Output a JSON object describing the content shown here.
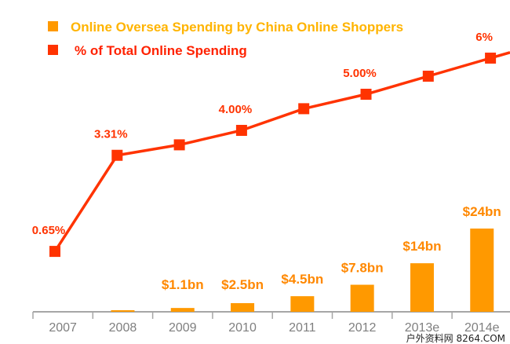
{
  "chart_data": {
    "type": "bar+line",
    "categories": [
      "2007",
      "2008",
      "2009",
      "2010",
      "2011",
      "2012",
      "2013e",
      "2014e"
    ],
    "series": [
      {
        "name": "Online Oversea Spending by China Online Shoppers",
        "type": "bar",
        "unit": "$bn",
        "color": "#ff9900",
        "values": [
          0,
          0.4,
          1.1,
          2.5,
          4.5,
          7.8,
          14,
          24
        ],
        "labels": [
          "",
          "",
          "$1.1bn",
          "$2.5bn",
          "$4.5bn",
          "$7.8bn",
          "$14bn",
          "$24bn"
        ]
      },
      {
        "name": "% of Total Online Spending",
        "type": "line",
        "unit": "%",
        "color": "#ff3300",
        "values": [
          0.65,
          3.31,
          3.6,
          4.0,
          4.6,
          5.0,
          5.5,
          6.0
        ],
        "labels": [
          "0.65%",
          "3.31%",
          "",
          "4.00%",
          "",
          "5.00%",
          "",
          "6%"
        ]
      }
    ],
    "bar_ylim": [
      0,
      24
    ],
    "line_ylim": [
      0,
      6
    ],
    "legend_position": "top-left",
    "grid": false
  },
  "watermark": "户外资料网 8264.COM"
}
